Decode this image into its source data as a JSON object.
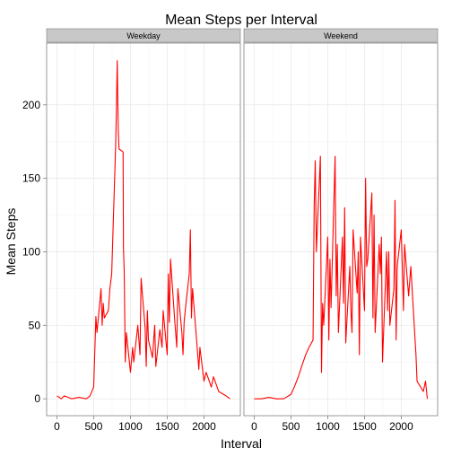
{
  "chart_data": {
    "type": "line",
    "title": "Mean Steps per Interval",
    "xlabel": "Interval",
    "ylabel": "Mean Steps",
    "xlim": [
      -140,
      2495
    ],
    "ylim": [
      -11.5,
      242
    ],
    "x_ticks": [
      0,
      500,
      1000,
      1500,
      2000
    ],
    "y_ticks": [
      0,
      50,
      100,
      150,
      200
    ],
    "grid": true,
    "line_color": "#ff0000",
    "panels": [
      {
        "label": "Weekday",
        "x": [
          0,
          30,
          60,
          100,
          200,
          300,
          400,
          450,
          500,
          530,
          545,
          600,
          615,
          630,
          645,
          700,
          720,
          745,
          800,
          810,
          820,
          835,
          845,
          900,
          905,
          915,
          930,
          945,
          1000,
          1030,
          1045,
          1100,
          1130,
          1145,
          1200,
          1215,
          1230,
          1245,
          1300,
          1330,
          1345,
          1400,
          1430,
          1445,
          1500,
          1515,
          1530,
          1545,
          1600,
          1630,
          1645,
          1700,
          1715,
          1730,
          1745,
          1800,
          1815,
          1830,
          1845,
          1900,
          1930,
          1945,
          2000,
          2030,
          2100,
          2130,
          2200,
          2300,
          2355
        ],
        "y": [
          2,
          1,
          0,
          2,
          0,
          1,
          0,
          2,
          8,
          56,
          45,
          75,
          50,
          65,
          55,
          60,
          75,
          85,
          175,
          200,
          230,
          182,
          170,
          168,
          103,
          87,
          25,
          45,
          18,
          35,
          25,
          50,
          30,
          82,
          48,
          22,
          60,
          40,
          28,
          50,
          22,
          47,
          35,
          60,
          30,
          85,
          52,
          95,
          55,
          35,
          75,
          45,
          30,
          52,
          60,
          85,
          115,
          55,
          75,
          40,
          20,
          35,
          12,
          18,
          8,
          15,
          5,
          2,
          0
        ]
      },
      {
        "label": "Weekend",
        "x": [
          0,
          100,
          200,
          300,
          400,
          500,
          545,
          600,
          645,
          700,
          745,
          800,
          815,
          830,
          845,
          900,
          915,
          930,
          945,
          1000,
          1015,
          1030,
          1045,
          1100,
          1115,
          1130,
          1145,
          1200,
          1215,
          1230,
          1245,
          1300,
          1315,
          1330,
          1345,
          1400,
          1415,
          1430,
          1445,
          1500,
          1515,
          1530,
          1545,
          1600,
          1615,
          1630,
          1645,
          1700,
          1715,
          1730,
          1745,
          1800,
          1815,
          1830,
          1845,
          1900,
          1915,
          1930,
          1945,
          2000,
          2030,
          2045,
          2100,
          2130,
          2200,
          2215,
          2300,
          2330,
          2355
        ],
        "y": [
          0,
          0,
          1,
          0,
          0,
          3,
          8,
          15,
          22,
          30,
          35,
          40,
          130,
          162,
          100,
          165,
          18,
          65,
          50,
          110,
          40,
          95,
          62,
          165,
          70,
          105,
          45,
          110,
          65,
          130,
          38,
          90,
          60,
          45,
          115,
          72,
          100,
          30,
          110,
          60,
          150,
          90,
          95,
          140,
          55,
          125,
          45,
          105,
          85,
          110,
          25,
          100,
          60,
          100,
          50,
          75,
          135,
          40,
          90,
          115,
          60,
          105,
          70,
          90,
          30,
          12,
          5,
          12,
          0
        ]
      }
    ]
  }
}
